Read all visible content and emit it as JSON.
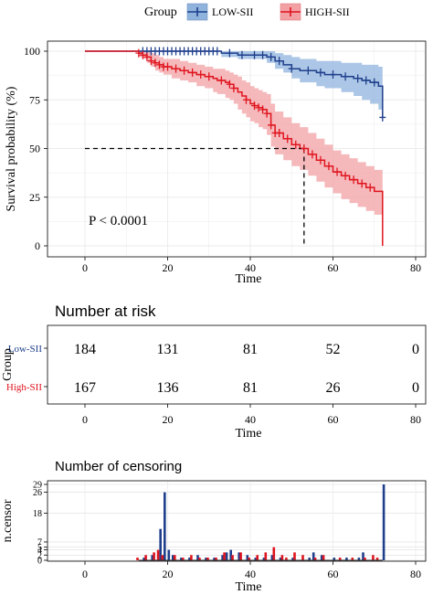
{
  "chart_data": [
    {
      "type": "line",
      "subtype": "kaplan-meier",
      "xlabel": "Time",
      "ylabel": "Survival probability (%)",
      "xlim": [
        0,
        80
      ],
      "ylim": [
        0,
        100
      ],
      "x_ticks": [
        0,
        20,
        40,
        60,
        80
      ],
      "y_ticks": [
        0,
        25,
        50,
        75,
        100
      ],
      "grid": true,
      "legend": {
        "title": "Group",
        "position": "top"
      },
      "annotation": "P < 0.0001",
      "median_line": {
        "y": 50,
        "x": 53
      },
      "series": [
        {
          "name": "LOW-SII",
          "color": "#1f3f8c",
          "band_color": "#8fb3dd",
          "x": [
            0,
            33,
            37,
            44,
            46,
            48,
            50,
            52,
            56,
            58,
            62,
            65,
            67,
            69,
            71,
            72
          ],
          "y": [
            100,
            99,
            98,
            97,
            95,
            93,
            91,
            90,
            89,
            88,
            87,
            86,
            85,
            84,
            82,
            66
          ],
          "lower": [
            100,
            97,
            96,
            94,
            91,
            89,
            86,
            84,
            82,
            81,
            79,
            77,
            75,
            73,
            70,
            58
          ],
          "upper": [
            100,
            100,
            100,
            100,
            99,
            98,
            97,
            96,
            95,
            95,
            94,
            94,
            93,
            93,
            92,
            80
          ],
          "censor_x": [
            14,
            15,
            16,
            17,
            18,
            19,
            20,
            21,
            22,
            23,
            24,
            25,
            26,
            27,
            28,
            29,
            30,
            31,
            32,
            35,
            38,
            41,
            43,
            45,
            47,
            50,
            54,
            57,
            60,
            63,
            66,
            68,
            70,
            72
          ]
        },
        {
          "name": "HIGH-SII",
          "color": "#e0141e",
          "band_color": "#f2a0a4",
          "x": [
            0,
            13,
            14,
            15,
            16,
            17,
            18,
            19,
            21,
            23,
            25,
            27,
            29,
            31,
            32,
            34,
            35,
            36,
            37,
            38,
            39,
            40,
            41,
            42,
            43,
            44,
            45,
            46,
            48,
            50,
            52,
            54,
            56,
            58,
            60,
            62,
            64,
            66,
            68,
            70,
            72
          ],
          "y": [
            100,
            99,
            98,
            97,
            95,
            94,
            93,
            92,
            91,
            90,
            89,
            88,
            87,
            86,
            85,
            84,
            83,
            81,
            79,
            77,
            75,
            73,
            72,
            71,
            70,
            68,
            62,
            58,
            55,
            52,
            50,
            47,
            44,
            41,
            38,
            36,
            34,
            32,
            30,
            28,
            0
          ],
          "lower": [
            100,
            97,
            96,
            94,
            92,
            90,
            89,
            88,
            86,
            85,
            84,
            82,
            81,
            79,
            78,
            76,
            75,
            73,
            70,
            68,
            66,
            64,
            63,
            61,
            60,
            57,
            51,
            47,
            44,
            41,
            39,
            36,
            33,
            30,
            27,
            24,
            22,
            20,
            18,
            16,
            0
          ],
          "upper": [
            100,
            100,
            100,
            100,
            99,
            98,
            97,
            96,
            96,
            95,
            94,
            93,
            92,
            91,
            91,
            90,
            89,
            88,
            87,
            85,
            84,
            82,
            81,
            80,
            79,
            78,
            73,
            69,
            66,
            63,
            61,
            58,
            55,
            52,
            49,
            47,
            45,
            43,
            41,
            39,
            0
          ],
          "censor_x": [
            13,
            14,
            15,
            16,
            17,
            18,
            19,
            20,
            22,
            24,
            26,
            28,
            30,
            33,
            35,
            36,
            39,
            41,
            42,
            43,
            44,
            45,
            46,
            47,
            49,
            51,
            53,
            55,
            57,
            59,
            61,
            63,
            65,
            67,
            69
          ]
        }
      ]
    },
    {
      "type": "table",
      "title": "Number at risk",
      "ylabel": "Group",
      "xlabel": "Time",
      "xlim": [
        0,
        80
      ],
      "x_ticks": [
        0,
        20,
        40,
        60,
        80
      ],
      "rows": [
        {
          "name": "Low-SII",
          "color": "#1f3f8c",
          "times": [
            0,
            20,
            40,
            60,
            80
          ],
          "values": [
            "184",
            "131",
            "81",
            "52",
            "0"
          ]
        },
        {
          "name": "High-SII",
          "color": "#e0141e",
          "times": [
            0,
            20,
            40,
            60,
            80
          ],
          "values": [
            "167",
            "136",
            "81",
            "26",
            "0"
          ]
        }
      ]
    },
    {
      "type": "bar",
      "title": "Number of censoring",
      "ylabel": "n.censor",
      "xlabel": "Time",
      "xlim": [
        0,
        80
      ],
      "x_ticks": [
        0,
        20,
        40,
        60,
        80
      ],
      "y_tick_labels": [
        "0",
        "2",
        "4",
        "5",
        "7",
        "18",
        "26",
        "29"
      ],
      "ylim": [
        0,
        29
      ],
      "series": [
        {
          "name": "LOW-SII",
          "color": "#1f3f8c",
          "x": [
            14,
            16,
            18,
            19,
            20,
            21,
            23,
            25,
            27,
            29,
            31,
            33,
            34,
            35,
            37,
            39,
            41,
            43,
            45,
            47,
            50,
            54,
            55,
            57,
            60,
            63,
            66,
            67,
            72
          ],
          "values": [
            1,
            2,
            12,
            26,
            4,
            2,
            1,
            1,
            2,
            1,
            1,
            2,
            3,
            4,
            3,
            2,
            1,
            1,
            2,
            1,
            1,
            1,
            3,
            2,
            1,
            1,
            1,
            3,
            29
          ]
        },
        {
          "name": "HIGH-SII",
          "color": "#e0141e",
          "x": [
            13,
            15,
            17,
            18,
            19,
            22,
            24,
            26,
            28,
            30,
            32,
            34,
            36,
            38,
            40,
            42,
            44,
            46,
            48,
            49,
            51,
            53,
            56,
            58,
            62,
            65,
            68,
            70,
            71
          ],
          "values": [
            1,
            2,
            3,
            4,
            2,
            2,
            1,
            2,
            1,
            1,
            1,
            3,
            2,
            3,
            1,
            2,
            3,
            5,
            2,
            1,
            3,
            2,
            1,
            2,
            1,
            1,
            1,
            2,
            1
          ]
        }
      ]
    }
  ]
}
